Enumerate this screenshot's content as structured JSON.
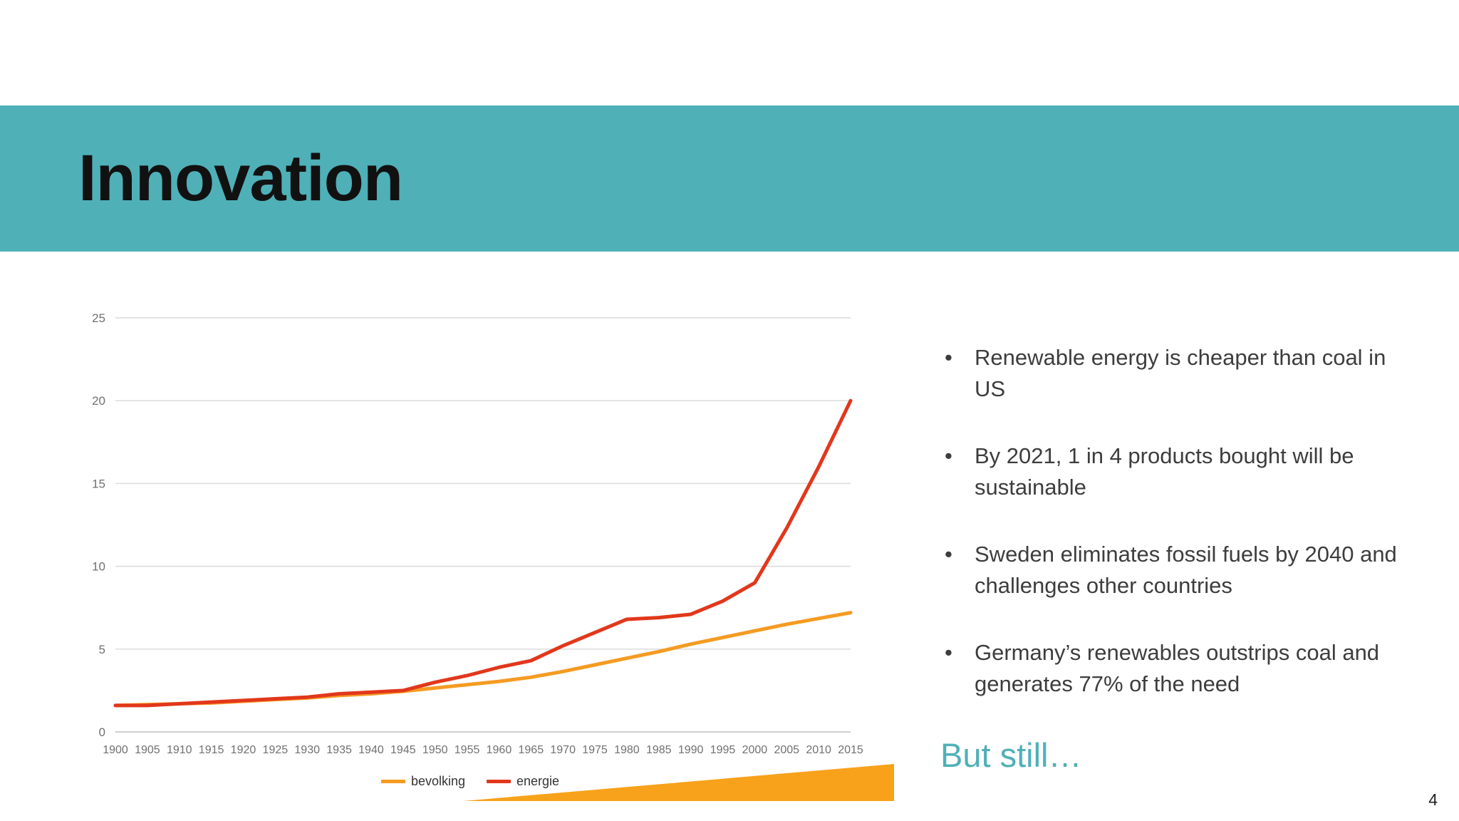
{
  "slide": {
    "title": "Innovation",
    "page_number": "4"
  },
  "content": {
    "bullets": [
      "Renewable energy is cheaper than coal in US",
      "By 2021, 1 in 4 products bought will be sustainable",
      "Sweden eliminates fossil fuels by 2040 and challenges other countries",
      "Germany’s renewables outstrips coal and generates 77% of the need"
    ],
    "but_still": "But still…"
  },
  "colors": {
    "accent_teal": "#4FB0B8",
    "series_orange": "#F59B22",
    "series_red": "#E2371B",
    "wedge_orange": "#F7A21A"
  },
  "chart_data": {
    "type": "line",
    "x": [
      1900,
      1905,
      1910,
      1915,
      1920,
      1925,
      1930,
      1935,
      1940,
      1945,
      1950,
      1955,
      1960,
      1965,
      1970,
      1975,
      1980,
      1985,
      1990,
      1995,
      2000,
      2005,
      2010,
      2015
    ],
    "series": [
      {
        "name": "bevolking",
        "color": "#F59B22",
        "values": [
          1.6,
          1.65,
          1.7,
          1.75,
          1.85,
          1.95,
          2.05,
          2.2,
          2.3,
          2.45,
          2.65,
          2.85,
          3.05,
          3.3,
          3.65,
          4.05,
          4.45,
          4.85,
          5.3,
          5.7,
          6.1,
          6.5,
          6.85,
          7.2
        ]
      },
      {
        "name": "energie",
        "color": "#E2371B",
        "values": [
          1.6,
          1.6,
          1.7,
          1.8,
          1.9,
          2.0,
          2.1,
          2.3,
          2.4,
          2.5,
          3.0,
          3.4,
          3.9,
          4.3,
          5.2,
          6.0,
          6.8,
          6.9,
          7.1,
          7.9,
          9.0,
          12.3,
          16.0,
          20.0
        ]
      }
    ],
    "ylim": [
      0,
      25
    ],
    "yticks": [
      0,
      5,
      10,
      15,
      20,
      25
    ],
    "grid": true,
    "legend_position": "bottom"
  }
}
